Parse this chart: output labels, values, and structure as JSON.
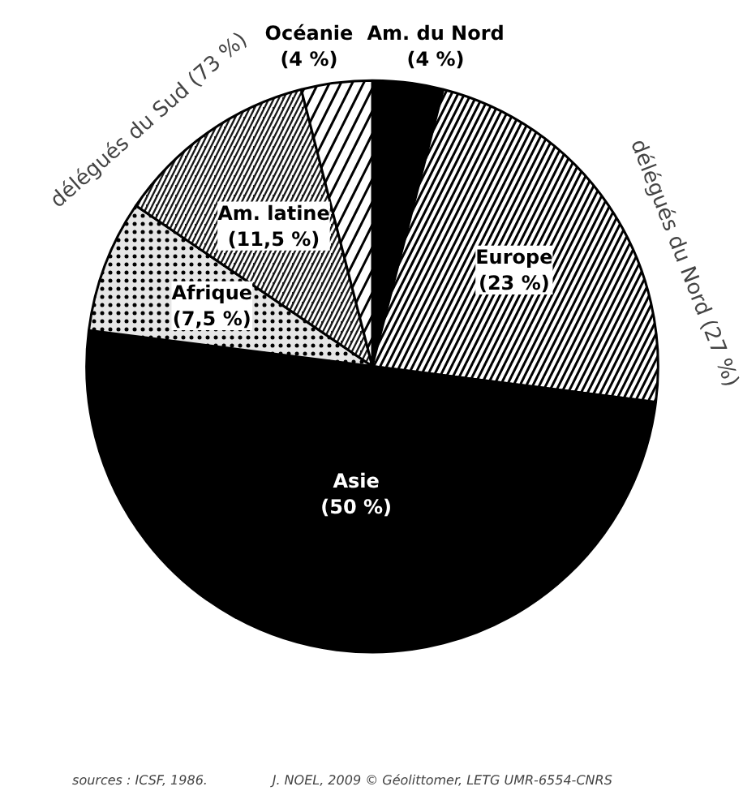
{
  "chart_data": {
    "type": "pie",
    "categories": [
      "Am. du Nord",
      "Europe",
      "Asie",
      "Afrique",
      "Am. latine",
      "Océanie"
    ],
    "values": [
      4,
      23,
      50,
      7.5,
      11.5,
      4
    ],
    "value_labels": [
      "(4 %)",
      "(23 %)",
      "(50 %)",
      "(7,5 %)",
      "(11,5 %)",
      "(4 %)"
    ],
    "colors": [
      "#000000",
      "#ffffff",
      "#000000",
      "#e6e6e6",
      "#1a1a1a",
      "#ffffff"
    ],
    "annotations": [
      "délégués du Nord (27 %)",
      "délégués du Sud (73 %)",
      "sources : ICSF, 1986.",
      "J. NOEL, 2009 © Géolittomer, LETG UMR-6554-CNRS"
    ]
  }
}
